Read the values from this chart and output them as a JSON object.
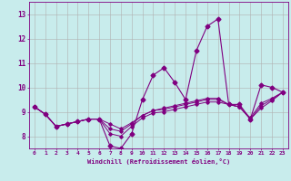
{
  "xlabel": "Windchill (Refroidissement éolien,°C)",
  "background_color": "#c8ecec",
  "line_color": "#800080",
  "grid_color": "#b0b0b0",
  "xlim": [
    -0.5,
    23.5
  ],
  "ylim": [
    7.5,
    13.5
  ],
  "yticks": [
    8,
    9,
    10,
    11,
    12,
    13
  ],
  "xticks": [
    0,
    1,
    2,
    3,
    4,
    5,
    6,
    7,
    8,
    9,
    10,
    11,
    12,
    13,
    14,
    15,
    16,
    17,
    18,
    19,
    20,
    21,
    22,
    23
  ],
  "series_main": [
    9.2,
    8.9,
    8.4,
    8.5,
    8.6,
    8.7,
    8.7,
    7.6,
    7.5,
    8.1,
    9.5,
    10.5,
    10.8,
    10.2,
    9.5,
    11.5,
    12.5,
    12.8,
    9.3,
    9.3,
    8.7,
    10.1,
    10.0,
    9.8
  ],
  "series_smooth": [
    [
      9.2,
      8.9,
      8.4,
      8.5,
      8.6,
      8.7,
      8.7,
      8.5,
      8.3,
      8.55,
      8.85,
      9.05,
      9.15,
      9.25,
      9.35,
      9.45,
      9.55,
      9.55,
      9.3,
      9.2,
      8.75,
      9.35,
      9.55,
      9.8
    ],
    [
      9.2,
      8.9,
      8.4,
      8.5,
      8.6,
      8.7,
      8.7,
      8.3,
      8.2,
      8.5,
      8.85,
      9.05,
      9.1,
      9.2,
      9.3,
      9.4,
      9.5,
      9.5,
      9.3,
      9.2,
      8.7,
      9.25,
      9.5,
      9.8
    ],
    [
      9.2,
      8.9,
      8.4,
      8.5,
      8.6,
      8.7,
      8.7,
      8.1,
      8.0,
      8.4,
      8.75,
      8.95,
      9.0,
      9.1,
      9.2,
      9.3,
      9.4,
      9.4,
      9.3,
      9.2,
      8.7,
      9.15,
      9.45,
      9.8
    ]
  ]
}
